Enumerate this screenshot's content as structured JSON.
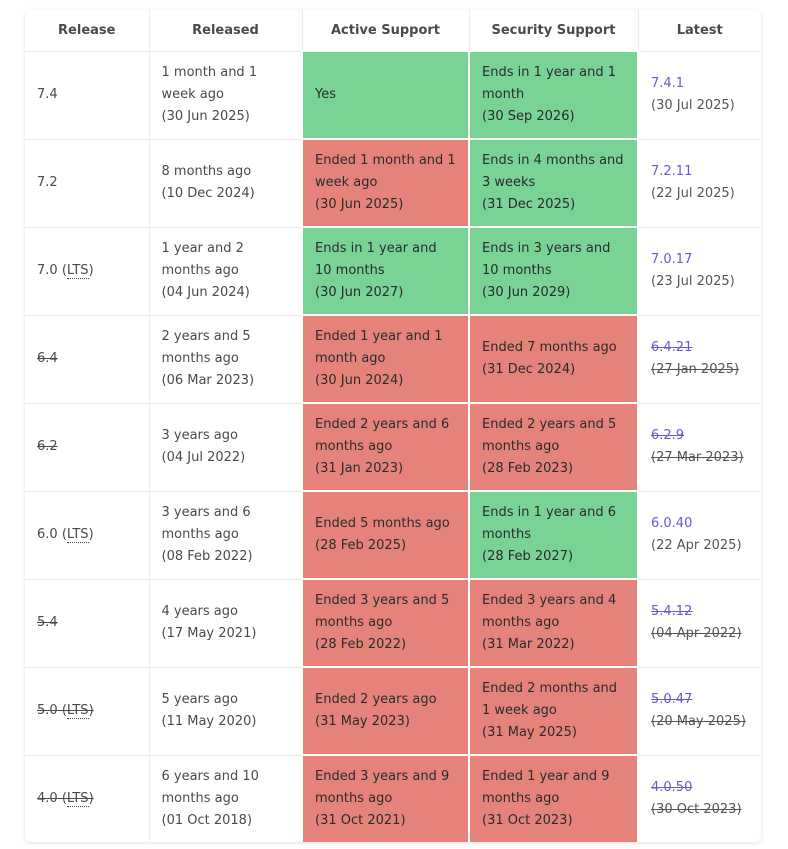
{
  "headers": {
    "release": "Release",
    "released": "Released",
    "active": "Active Support",
    "security": "Security Support",
    "latest": "Latest"
  },
  "colors": {
    "supported": "#79d395",
    "ended": "#e5837b",
    "link": "#6a5acd"
  },
  "rows": [
    {
      "release": "7.4",
      "lts": "",
      "released_ago": "1 month and 1 week ago",
      "released_date": "(30 Jun 2025)",
      "active_text": "Yes",
      "active_date": "",
      "security_text": "Ends in 1 year and 1 month",
      "security_date": "(30 Sep 2026)",
      "latest_version": "7.4.1",
      "latest_date": "(30 Jul 2025)"
    },
    {
      "release": "7.2",
      "lts": "",
      "released_ago": "8 months ago",
      "released_date": "(10 Dec 2024)",
      "active_text": "Ended 1 month and 1 week ago",
      "active_date": "(30 Jun 2025)",
      "security_text": "Ends in 4 months and 3 weeks",
      "security_date": "(31 Dec 2025)",
      "latest_version": "7.2.11",
      "latest_date": "(22 Jul 2025)"
    },
    {
      "release": "7.0",
      "lts": "LTS",
      "released_ago": "1 year and 2 months ago",
      "released_date": "(04 Jun 2024)",
      "active_text": "Ends in 1 year and 10 months",
      "active_date": "(30 Jun 2027)",
      "security_text": "Ends in 3 years and 10 months",
      "security_date": "(30 Jun 2029)",
      "latest_version": "7.0.17",
      "latest_date": "(23 Jul 2025)"
    },
    {
      "release": "6.4",
      "lts": "",
      "released_ago": "2 years and 5 months ago",
      "released_date": "(06 Mar 2023)",
      "active_text": "Ended 1 year and 1 month ago",
      "active_date": "(30 Jun 2024)",
      "security_text": "Ended 7 months ago",
      "security_date": "(31 Dec 2024)",
      "latest_version": "6.4.21",
      "latest_date": "(27 Jan 2025)"
    },
    {
      "release": "6.2",
      "lts": "",
      "released_ago": "3 years ago",
      "released_date": "(04 Jul 2022)",
      "active_text": "Ended 2 years and 6 months ago",
      "active_date": "(31 Jan 2023)",
      "security_text": "Ended 2 years and 5 months ago",
      "security_date": "(28 Feb 2023)",
      "latest_version": "6.2.9",
      "latest_date": "(27 Mar 2023)"
    },
    {
      "release": "6.0",
      "lts": "LTS",
      "released_ago": "3 years and 6 months ago",
      "released_date": "(08 Feb 2022)",
      "active_text": "Ended 5 months ago",
      "active_date": "(28 Feb 2025)",
      "security_text": "Ends in 1 year and 6 months",
      "security_date": "(28 Feb 2027)",
      "latest_version": "6.0.40",
      "latest_date": "(22 Apr 2025)"
    },
    {
      "release": "5.4",
      "lts": "",
      "released_ago": "4 years ago",
      "released_date": "(17 May 2021)",
      "active_text": "Ended 3 years and 5 months ago",
      "active_date": "(28 Feb 2022)",
      "security_text": "Ended 3 years and 4 months ago",
      "security_date": "(31 Mar 2022)",
      "latest_version": "5.4.12",
      "latest_date": "(04 Apr 2022)"
    },
    {
      "release": "5.0",
      "lts": "LTS",
      "released_ago": "5 years ago",
      "released_date": "(11 May 2020)",
      "active_text": "Ended 2 years ago",
      "active_date": "(31 May 2023)",
      "security_text": "Ended 2 months and 1 week ago",
      "security_date": "(31 May 2025)",
      "latest_version": "5.0.47",
      "latest_date": "(20 May 2025)"
    },
    {
      "release": "4.0",
      "lts": "LTS",
      "released_ago": "6 years and 10 months ago",
      "released_date": "(01 Oct 2018)",
      "active_text": "Ended 3 years and 9 months ago",
      "active_date": "(31 Oct 2021)",
      "security_text": "Ended 1 year and 9 months ago",
      "security_date": "(31 Oct 2023)",
      "latest_version": "4.0.50",
      "latest_date": "(30 Oct 2023)"
    }
  ]
}
